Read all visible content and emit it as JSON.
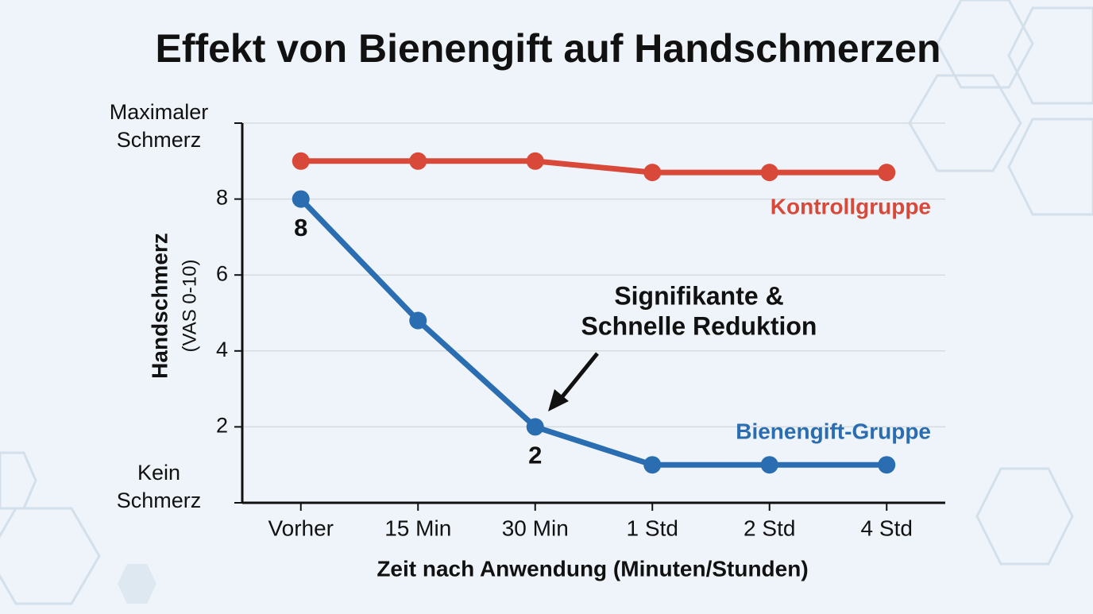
{
  "chart_data": {
    "type": "line",
    "title": "Effekt von Bienengift auf Handschmerzen",
    "x_label": "Zeit nach Anwendung (Minuten/Stunden)",
    "y_label": "Handschmerz",
    "y_label_sub": "(VAS 0-10)",
    "categories": [
      "Vorher",
      "15 Min",
      "30 Min",
      "1 Std",
      "2 Std",
      "4 Std"
    ],
    "series": [
      {
        "name": "Kontrollgruppe",
        "color": "#d9493a",
        "values": [
          9,
          9,
          9,
          8.7,
          8.7,
          8.7
        ]
      },
      {
        "name": "Bienengift-Gruppe",
        "color": "#2a6db0",
        "values": [
          8,
          4.8,
          2,
          1,
          1,
          1
        ],
        "value_labels": [
          "8",
          null,
          "2",
          null,
          null,
          null
        ]
      }
    ],
    "ylim": [
      0,
      10
    ],
    "yticks": [
      {
        "value": 0,
        "label": "Kein Schmerz"
      },
      2,
      4,
      6,
      8,
      {
        "value": 10,
        "label": "Maximaler Schmerz"
      }
    ],
    "grid": true,
    "annotation": [
      "Signifikante &",
      "Schnelle Reduktion"
    ]
  }
}
